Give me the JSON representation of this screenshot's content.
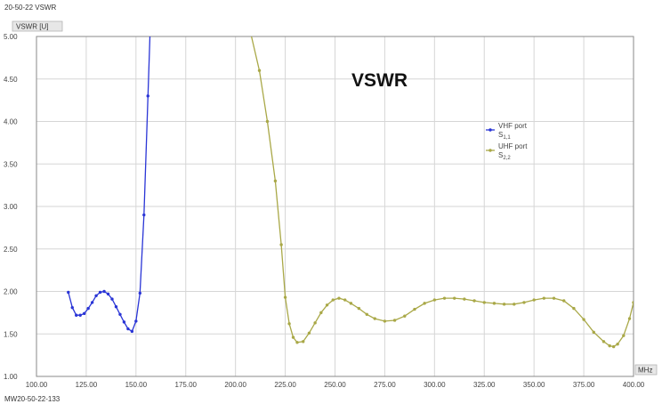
{
  "header": {
    "title": "20-50-22 VSWR"
  },
  "footer": {
    "code": "MW20-50-22-133"
  },
  "colors": {
    "vhf": "#2a35d6",
    "uhf": "#a9a847",
    "grid": "#d6d6d6",
    "frame": "#888888"
  },
  "chart_data": {
    "type": "line",
    "title": "VSWR",
    "ylabel": "VSWR [U]",
    "xlabel": "MHz",
    "xlim": [
      100,
      400
    ],
    "ylim": [
      1.0,
      5.0
    ],
    "x_ticks": [
      100,
      125,
      150,
      175,
      200,
      225,
      250,
      275,
      300,
      325,
      350,
      375,
      400
    ],
    "x_tick_labels": [
      "100.00",
      "125.00",
      "150.00",
      "175.00",
      "200.00",
      "225.00",
      "250.00",
      "275.00",
      "300.00",
      "325.00",
      "350.00",
      "375.00",
      "400.00"
    ],
    "y_ticks": [
      1.0,
      1.5,
      2.0,
      2.5,
      3.0,
      3.5,
      4.0,
      4.5,
      5.0
    ],
    "y_tick_labels": [
      "1.00",
      "1.50",
      "2.00",
      "2.50",
      "3.00",
      "3.50",
      "4.00",
      "4.50",
      "5.00"
    ],
    "grid": true,
    "legend_position": "right",
    "series": [
      {
        "name": "VHF port",
        "subscript": "1,1",
        "color": "#2a35d6",
        "x": [
          116,
          118,
          120,
          122,
          124,
          126,
          128,
          130,
          132,
          134,
          136,
          138,
          140,
          142,
          144,
          146,
          148,
          150,
          152,
          154,
          156,
          157
        ],
        "y": [
          1.99,
          1.81,
          1.72,
          1.72,
          1.74,
          1.8,
          1.87,
          1.95,
          1.99,
          2.0,
          1.97,
          1.91,
          1.82,
          1.73,
          1.64,
          1.56,
          1.53,
          1.65,
          1.98,
          2.9,
          4.3,
          5.0
        ]
      },
      {
        "name": "UHF port",
        "subscript": "2,2",
        "color": "#a9a847",
        "x": [
          208,
          212,
          216,
          220,
          223,
          225,
          227,
          229,
          231,
          234,
          237,
          240,
          243,
          246,
          249,
          252,
          255,
          258,
          262,
          266,
          270,
          275,
          280,
          285,
          290,
          295,
          300,
          305,
          310,
          315,
          320,
          325,
          330,
          335,
          340,
          345,
          350,
          355,
          360,
          365,
          370,
          375,
          380,
          385,
          388,
          390,
          392,
          395,
          398,
          400
        ],
        "y": [
          5.0,
          4.6,
          4.0,
          3.3,
          2.55,
          1.93,
          1.62,
          1.46,
          1.4,
          1.41,
          1.51,
          1.63,
          1.75,
          1.84,
          1.9,
          1.92,
          1.9,
          1.86,
          1.8,
          1.73,
          1.68,
          1.65,
          1.66,
          1.71,
          1.79,
          1.86,
          1.9,
          1.92,
          1.92,
          1.91,
          1.89,
          1.87,
          1.86,
          1.85,
          1.85,
          1.87,
          1.9,
          1.92,
          1.92,
          1.89,
          1.8,
          1.67,
          1.52,
          1.41,
          1.36,
          1.35,
          1.38,
          1.48,
          1.68,
          1.87
        ]
      }
    ]
  }
}
